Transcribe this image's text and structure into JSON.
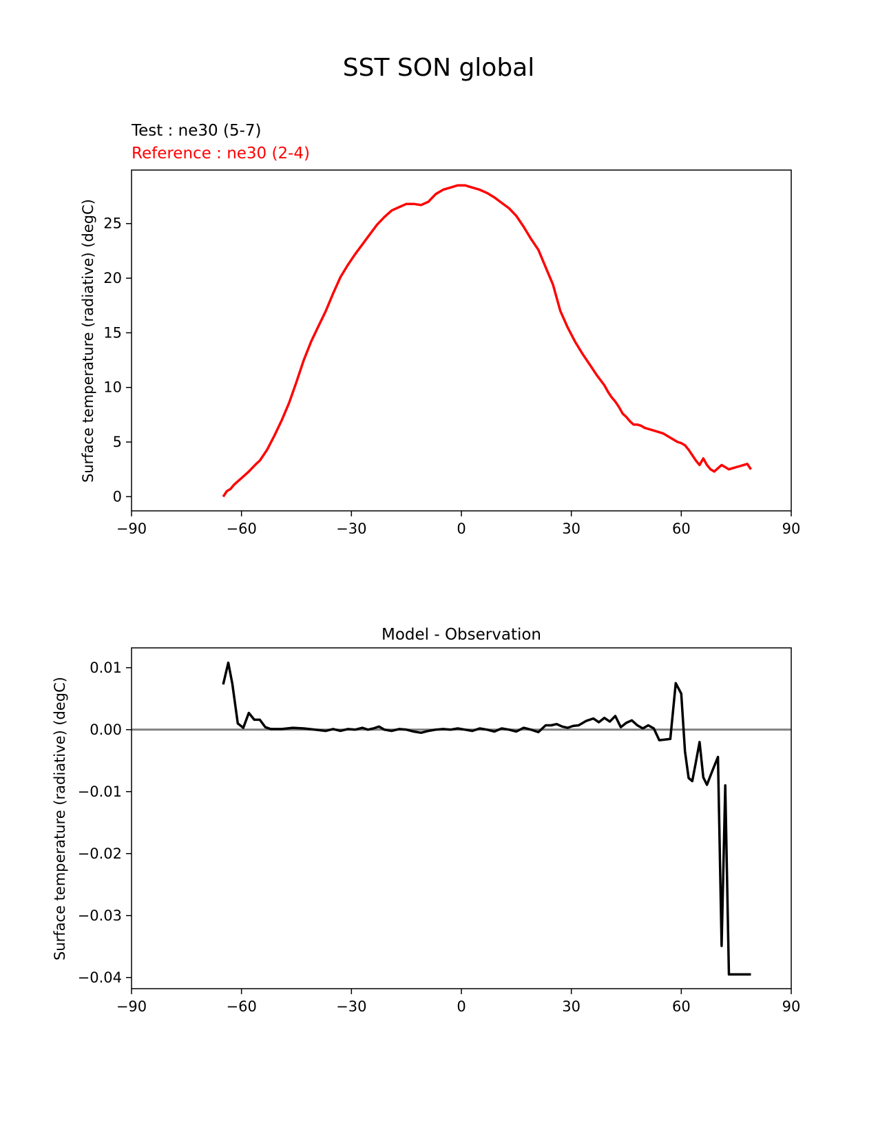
{
  "figure": {
    "title": "SST SON global"
  },
  "chart_data": [
    {
      "type": "line",
      "title": "",
      "test_label": "Test : ne30 (5-7)",
      "reference_label": "Reference : ne30 (2-4)",
      "xlabel": "",
      "ylabel": "Surface temperature (radiative) (degC)",
      "xlim": [
        -90,
        90
      ],
      "ylim": [
        -1.3,
        29.9
      ],
      "xticks": [
        -90,
        -60,
        -30,
        0,
        30,
        60,
        90
      ],
      "yticks": [
        0,
        5,
        10,
        15,
        20,
        25
      ],
      "xtick_labels": [
        "−90",
        "−60",
        "−30",
        "0",
        "30",
        "60",
        "90"
      ],
      "ytick_labels": [
        "0",
        "5",
        "10",
        "15",
        "20",
        "25"
      ],
      "series": [
        {
          "name": "Reference : ne30 (2-4)",
          "color": "#ff0000",
          "x": [
            -65,
            -64,
            -63,
            -62,
            -61,
            -60,
            -58,
            -56,
            -55,
            -53,
            -51,
            -49,
            -47,
            -45,
            -43,
            -41,
            -39,
            -37,
            -35,
            -33,
            -31,
            -29,
            -27,
            -25,
            -23,
            -21,
            -19,
            -17,
            -15,
            -13,
            -11,
            -9,
            -7,
            -5,
            -3,
            -1,
            1,
            2,
            3,
            5,
            7,
            9,
            11,
            13,
            15,
            17,
            19,
            21,
            23,
            25,
            27,
            29,
            31,
            33,
            35,
            37,
            39,
            40,
            41,
            42,
            43,
            44,
            45,
            46,
            47,
            48,
            49,
            50,
            51,
            52,
            53,
            54,
            55,
            56,
            57,
            58,
            59,
            60,
            61,
            62,
            63,
            64,
            65,
            66,
            67,
            68,
            69,
            70,
            71,
            72,
            73,
            74,
            75,
            76,
            77,
            78,
            79
          ],
          "values": [
            0.0,
            0.5,
            0.7,
            1.1,
            1.4,
            1.7,
            2.3,
            3.0,
            3.3,
            4.3,
            5.6,
            7.0,
            8.6,
            10.5,
            12.5,
            14.2,
            15.6,
            17.0,
            18.6,
            20.1,
            21.2,
            22.2,
            23.1,
            24.0,
            24.9,
            25.6,
            26.2,
            26.5,
            26.8,
            26.8,
            26.7,
            27.0,
            27.7,
            28.1,
            28.3,
            28.5,
            28.5,
            28.4,
            28.3,
            28.1,
            27.8,
            27.4,
            26.9,
            26.4,
            25.7,
            24.7,
            23.6,
            22.6,
            21.0,
            19.4,
            17.0,
            15.5,
            14.2,
            13.1,
            12.1,
            11.1,
            10.2,
            9.6,
            9.1,
            8.7,
            8.2,
            7.6,
            7.3,
            6.9,
            6.6,
            6.6,
            6.5,
            6.3,
            6.2,
            6.1,
            6.0,
            5.9,
            5.8,
            5.6,
            5.4,
            5.2,
            5.0,
            4.9,
            4.7,
            4.3,
            3.8,
            3.3,
            2.9,
            3.5,
            2.9,
            2.5,
            2.3,
            2.6,
            2.9,
            2.7,
            2.5,
            2.6,
            2.7,
            2.8,
            2.9,
            3.0,
            2.5
          ]
        }
      ]
    },
    {
      "type": "line",
      "title": "Model - Observation",
      "xlabel": "",
      "ylabel": "Surface temperature (radiative) (degC)",
      "xlim": [
        -90,
        90
      ],
      "ylim": [
        -0.0418,
        0.0132
      ],
      "xticks": [
        -90,
        -60,
        -30,
        0,
        30,
        60,
        90
      ],
      "yticks": [
        0.01,
        0.0,
        -0.01,
        -0.02,
        -0.03,
        -0.04
      ],
      "xtick_labels": [
        "−90",
        "−60",
        "−30",
        "0",
        "30",
        "60",
        "90"
      ],
      "ytick_labels": [
        "0.01",
        "0.00",
        "−0.01",
        "−0.02",
        "−0.03",
        "−0.04"
      ],
      "zero_line_color": "#808080",
      "series": [
        {
          "name": "Model - Observation",
          "color": "#000000",
          "x": [
            -65,
            -63.6,
            -62.5,
            -61,
            -59.5,
            -58,
            -56.5,
            -55,
            -53.5,
            -52,
            -49,
            -46,
            -43,
            -40,
            -37,
            -35,
            -33,
            -31,
            -29,
            -27,
            -25.5,
            -24,
            -22.5,
            -21,
            -19,
            -17,
            -15,
            -13,
            -11,
            -9,
            -7,
            -5,
            -3,
            -1,
            1,
            3,
            5,
            7,
            9,
            11,
            13,
            15,
            17,
            19,
            21,
            23,
            24.5,
            26,
            27.5,
            29,
            30.5,
            32,
            34,
            36,
            37.5,
            39,
            40.5,
            42,
            43.5,
            45,
            46.5,
            48,
            49.5,
            51,
            52.5,
            54,
            55.5,
            57,
            58.5,
            60,
            61,
            62,
            63,
            64,
            65,
            66,
            67,
            68.5,
            70,
            71,
            72,
            73,
            74,
            75,
            76,
            77.5,
            79
          ],
          "values": [
            0.0073,
            0.0108,
            0.0074,
            0.001,
            0.0003,
            0.0027,
            0.0016,
            0.0016,
            0.0004,
            0.0001,
            0.0001,
            0.0003,
            0.0002,
            0.0,
            -0.0002,
            0.0001,
            -0.0002,
            0.0001,
            0.0,
            0.0003,
            0.0,
            0.0002,
            0.0005,
            0.0,
            -0.0002,
            0.0001,
            0.0,
            -0.0003,
            -0.0005,
            -0.0002,
            0.0,
            0.0001,
            0.0,
            0.0002,
            0.0,
            -0.0002,
            0.0002,
            0.0,
            -0.0003,
            0.0002,
            0.0,
            -0.0003,
            0.0003,
            0.0,
            -0.0004,
            0.0007,
            0.0007,
            0.0009,
            0.0005,
            0.0003,
            0.0006,
            0.0007,
            0.0014,
            0.0018,
            0.0012,
            0.0019,
            0.0013,
            0.0022,
            0.0004,
            0.0011,
            0.0015,
            0.0007,
            0.0002,
            0.0007,
            0.0002,
            -0.0017,
            -0.0016,
            -0.0015,
            0.0075,
            0.0058,
            -0.0035,
            -0.0078,
            -0.0083,
            -0.0052,
            -0.002,
            -0.0077,
            -0.0089,
            -0.0066,
            -0.0044,
            -0.0349,
            -0.009,
            -0.0395,
            -0.0395,
            -0.0395,
            -0.0395,
            -0.0395,
            -0.0395
          ]
        }
      ]
    }
  ]
}
